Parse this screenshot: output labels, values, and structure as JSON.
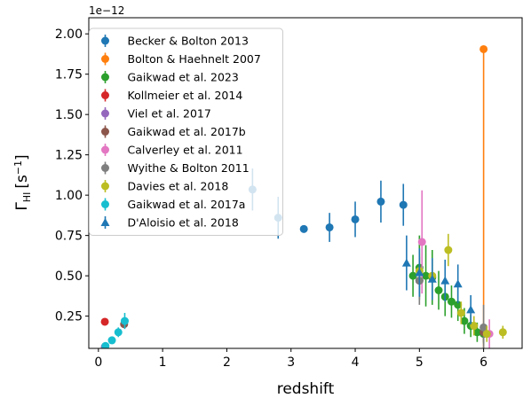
{
  "chart_data": {
    "type": "scatter",
    "title": "",
    "xlabel": "redshift",
    "ylabel": "Γ_HI [s^-1]",
    "ylabel_main": "Γ",
    "ylabel_sub": "HI",
    "ylabel_unit": "[s",
    "ylabel_sup": "−1",
    "ylabel_close": "]",
    "y_offset_label": "1e−12",
    "xlim": [
      -0.15,
      6.6
    ],
    "ylim": [
      0.05,
      2.1
    ],
    "x_ticks": [
      0,
      1,
      2,
      3,
      4,
      5,
      6
    ],
    "x_tick_labels": [
      "0",
      "1",
      "2",
      "3",
      "4",
      "5",
      "6"
    ],
    "y_ticks": [
      0.25,
      0.5,
      0.75,
      1.0,
      1.25,
      1.5,
      1.75,
      2.0
    ],
    "y_tick_labels": [
      "0.25",
      "0.50",
      "0.75",
      "1.00",
      "1.25",
      "1.50",
      "1.75",
      "2.00"
    ],
    "grid": false,
    "legend_position": "top-left",
    "series": [
      {
        "name": "Becker & Bolton 2013",
        "color": "#1f77b4",
        "marker": "circle",
        "points": [
          {
            "x": 2.4,
            "y": 1.035,
            "err": 0.13
          },
          {
            "x": 2.8,
            "y": 0.86,
            "err": 0.13
          },
          {
            "x": 3.2,
            "y": 0.79,
            "err": 0.0
          },
          {
            "x": 3.6,
            "y": 0.8,
            "err": 0.09
          },
          {
            "x": 4.0,
            "y": 0.85,
            "err": 0.11
          },
          {
            "x": 4.4,
            "y": 0.96,
            "err": 0.13
          },
          {
            "x": 4.75,
            "y": 0.94,
            "err": 0.13
          }
        ]
      },
      {
        "name": "Bolton & Haehnelt 2007",
        "color": "#ff7f0e",
        "marker": "circle",
        "points": [
          {
            "x": 6.0,
            "y": 1.905,
            "err_low": 1.85,
            "err_high": 0.0
          }
        ]
      },
      {
        "name": "Gaikwad et al. 2023",
        "color": "#2ca02c",
        "marker": "circle",
        "points": [
          {
            "x": 4.9,
            "y": 0.5,
            "err": 0.13
          },
          {
            "x": 5.0,
            "y": 0.55,
            "err": 0.2
          },
          {
            "x": 5.1,
            "y": 0.5,
            "err": 0.19
          },
          {
            "x": 5.2,
            "y": 0.49,
            "err": 0.17
          },
          {
            "x": 5.3,
            "y": 0.41,
            "err": 0.12
          },
          {
            "x": 5.4,
            "y": 0.37,
            "err": 0.12
          },
          {
            "x": 5.5,
            "y": 0.34,
            "err": 0.1
          },
          {
            "x": 5.6,
            "y": 0.32,
            "err": 0.1
          },
          {
            "x": 5.7,
            "y": 0.22,
            "err": 0.08
          },
          {
            "x": 5.8,
            "y": 0.19,
            "err": 0.07
          },
          {
            "x": 5.9,
            "y": 0.15,
            "err": 0.06
          },
          {
            "x": 6.0,
            "y": 0.14,
            "err": 0.06
          }
        ]
      },
      {
        "name": "Kollmeier et al. 2014",
        "color": "#d62728",
        "marker": "circle",
        "points": [
          {
            "x": 0.1,
            "y": 0.215,
            "err": 0.0
          }
        ]
      },
      {
        "name": "Viel et al. 2017",
        "color": "#9467bd",
        "marker": "circle",
        "points": [
          {
            "x": 0.1,
            "y": 0.06,
            "err": 0.0
          }
        ]
      },
      {
        "name": "Gaikwad et al. 2017b",
        "color": "#8c564b",
        "marker": "circle",
        "points": [
          {
            "x": 0.4,
            "y": 0.2,
            "err": 0.02
          },
          {
            "x": 5.0,
            "y": 0.47,
            "err": 0.1
          },
          {
            "x": 6.0,
            "y": 0.15,
            "err": 0.06
          }
        ]
      },
      {
        "name": "Calverley et al. 2011",
        "color": "#e377c2",
        "marker": "circle",
        "points": [
          {
            "x": 5.04,
            "y": 0.71,
            "err": 0.32
          },
          {
            "x": 6.09,
            "y": 0.14,
            "err": 0.09
          }
        ]
      },
      {
        "name": "Wyithe & Bolton 2011",
        "color": "#7f7f7f",
        "marker": "circle",
        "points": [
          {
            "x": 5.0,
            "y": 0.47,
            "err": 0.15
          },
          {
            "x": 6.0,
            "y": 0.18,
            "err": 0.14
          }
        ]
      },
      {
        "name": "Davies et al. 2018",
        "color": "#bcbd22",
        "marker": "circle",
        "points": [
          {
            "x": 5.0,
            "y": 0.53,
            "err": 0.11
          },
          {
            "x": 5.2,
            "y": 0.5,
            "err": 0.1
          },
          {
            "x": 5.45,
            "y": 0.66,
            "err": 0.1
          },
          {
            "x": 5.65,
            "y": 0.27,
            "err": 0.07
          },
          {
            "x": 5.85,
            "y": 0.19,
            "err": 0.06
          },
          {
            "x": 6.05,
            "y": 0.14,
            "err": 0.05
          },
          {
            "x": 6.3,
            "y": 0.15,
            "err": 0.04
          }
        ]
      },
      {
        "name": "Gaikwad et al. 2017a",
        "color": "#17becf",
        "marker": "circle",
        "points": [
          {
            "x": 0.11,
            "y": 0.065,
            "err": 0.01
          },
          {
            "x": 0.21,
            "y": 0.1,
            "err": 0.02
          },
          {
            "x": 0.31,
            "y": 0.15,
            "err": 0.03
          },
          {
            "x": 0.41,
            "y": 0.22,
            "err": 0.05
          }
        ]
      },
      {
        "name": "D'Aloisio et al. 2018",
        "color": "#1f77b4",
        "marker": "triangle",
        "points": [
          {
            "x": 4.8,
            "y": 0.58,
            "err": 0.17
          },
          {
            "x": 5.0,
            "y": 0.52,
            "err": 0.15
          },
          {
            "x": 5.2,
            "y": 0.48,
            "err": 0.13
          },
          {
            "x": 5.4,
            "y": 0.47,
            "err": 0.13
          },
          {
            "x": 5.6,
            "y": 0.45,
            "err": 0.12
          },
          {
            "x": 5.8,
            "y": 0.29,
            "err": 0.09
          }
        ]
      }
    ]
  }
}
